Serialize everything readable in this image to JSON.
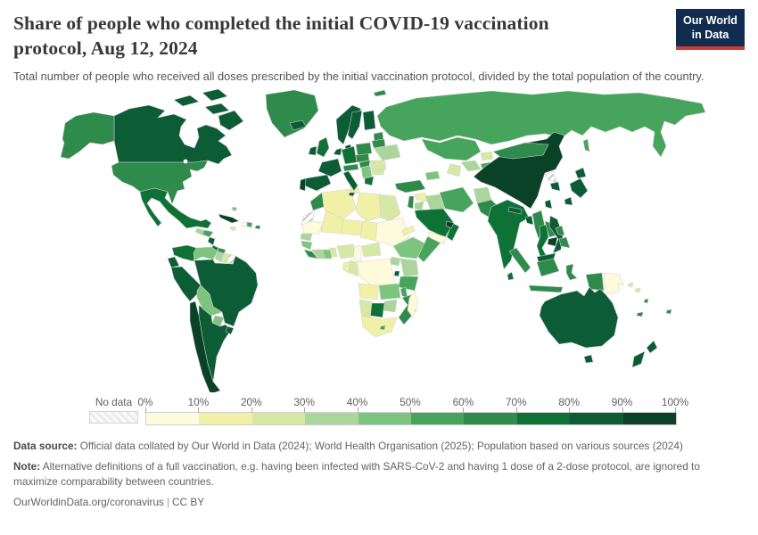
{
  "header": {
    "title": "Share of people who completed the initial COVID-19 vaccination protocol, Aug 12, 2024",
    "subtitle": "Total number of people who received all doses prescribed by the initial vaccination protocol, divided by the total population of the country.",
    "logo": {
      "line1": "Our World",
      "line2": "in Data",
      "background": "#102d50",
      "accent": "#d33a34"
    }
  },
  "legend": {
    "no_data_label": "No data",
    "ticks": [
      "0%",
      "10%",
      "20%",
      "30%",
      "40%",
      "50%",
      "60%",
      "70%",
      "80%",
      "90%",
      "100%"
    ]
  },
  "chart_data": {
    "type": "heatmap",
    "subtype": "choropleth world map",
    "title": "Share of people who completed the initial COVID-19 vaccination protocol",
    "date": "Aug 12, 2024",
    "unit": "share of total population",
    "legend_position": "bottom",
    "bin_labels": [
      "0-10%",
      "10-20%",
      "20-30%",
      "30-40%",
      "40-50%",
      "50-60%",
      "60-70%",
      "70-80%",
      "80-90%",
      "90-100%"
    ],
    "bin_colors": [
      "#fdfbdc",
      "#f0f0a6",
      "#d7e8a4",
      "#aad69b",
      "#7dc47f",
      "#47a45c",
      "#2e8b4b",
      "#0e7237",
      "#0c5c36",
      "#0a4228"
    ],
    "no_data_fill": "hatched-gray",
    "values": {
      "united-states": 6,
      "canada": 8,
      "greenland": 6,
      "iceland": 8,
      "mexico": 7,
      "guatemala": 3,
      "honduras": 5,
      "nicaragua": 8,
      "costa-rica": 7,
      "panama": 6,
      "cuba": 9,
      "jamaica": 2,
      "haiti": 0,
      "dominican-republic": 5,
      "puerto-rico": 6,
      "bahamas": 4,
      "brazil": 8,
      "argentina": 8,
      "chile": 9,
      "peru": 8,
      "ecuador": 8,
      "colombia": 7,
      "venezuela": 4,
      "guyana": 3,
      "suriname": 2,
      "french-guiana": "no-data",
      "bolivia": 4,
      "paraguay": 4,
      "uruguay": 8,
      "morocco": 6,
      "western-sahara": "no-data",
      "algeria": 1,
      "tunisia": 1,
      "libya": 1,
      "egypt": 2,
      "mauritania": 0,
      "mali": 1,
      "niger": 1,
      "chad": 1,
      "sudan": 0,
      "eritrea": 1,
      "senegal": 3,
      "guinea": 4,
      "sierra-leone": 6,
      "ivory-coast": 3,
      "ghana": 4,
      "togo": 2,
      "nigeria": 2,
      "cameroon": 0,
      "central-african-republic": 2,
      "ethiopia": 4,
      "somalia": 5,
      "kenya": 3,
      "uganda": 3,
      "democratic-republic-of-congo": 0,
      "congo": 2,
      "gabon": 1,
      "tanzania": 5,
      "rwanda": 8,
      "angola": 1,
      "zambia": 4,
      "malawi": 5,
      "mozambique": 6,
      "zimbabwe": 3,
      "botswana": 7,
      "namibia": 2,
      "south-africa": 1,
      "lesotho": 5,
      "madagascar": 0,
      "svalbard": 6,
      "norway": 8,
      "sweden": 8,
      "finland": 8,
      "denmark": 9,
      "united-kingdom": 7,
      "ireland": 8,
      "france": 8,
      "spain": 8,
      "portugal": 9,
      "germany": 7,
      "netherlands-belgium": 8,
      "switzerland-austria": 6,
      "italy": 8,
      "czechia-slovakia": 6,
      "poland": 6,
      "baltic-states": 6,
      "belarus": 6,
      "ukraine": 3,
      "hungary": 6,
      "romania": 2,
      "serbia-balkans": 4,
      "bulgaria": 2,
      "greece": 7,
      "russia": 5,
      "kazakhstan": 5,
      "uzbekistan": 3,
      "turkmenistan": 2,
      "kyrgyzstan": 2,
      "tajikistan": 5,
      "georgia-azerbaijan": 4,
      "turkey": 6,
      "syria": 1,
      "israel-lebanon": 6,
      "jordan": 3,
      "iraq": 3,
      "saudi-arabia": 7,
      "yemen": 0,
      "oman": 7,
      "united-arab-emirates": 9,
      "iran": 5,
      "afghanistan": 3,
      "pakistan": 6,
      "india": 7,
      "nepal": 8,
      "bangladesh": 8,
      "sri-lanka": 7,
      "china": 9,
      "mongolia": 6,
      "north-korea": "no-data",
      "south-korea": 8,
      "japan": 8,
      "taiwan": 8,
      "myanmar": 6,
      "thailand": 7,
      "laos": 6,
      "cambodia": 9,
      "vietnam": 8,
      "malaysia": 8,
      "indonesia": 6,
      "philippines": 6,
      "papua-new-guinea": 0,
      "solomon-islands": 2,
      "vanuatu": 6,
      "fiji": 6,
      "new-caledonia": 6,
      "australia": 8,
      "new-zealand": 8
    }
  },
  "footer": {
    "data_source_label": "Data source:",
    "data_source_text": " Official data collated by Our World in Data (2024); World Health Organisation (2025); Population based on various sources (2024)",
    "note_label": "Note:",
    "note_text": " Alternative definitions of a full vaccination, e.g. having been infected with SARS-CoV-2 and having 1 dose of a 2-dose protocol, are ignored to maximize comparability between countries.",
    "link": "OurWorldinData.org/coronavirus",
    "separator": "|",
    "license": "CC BY"
  }
}
